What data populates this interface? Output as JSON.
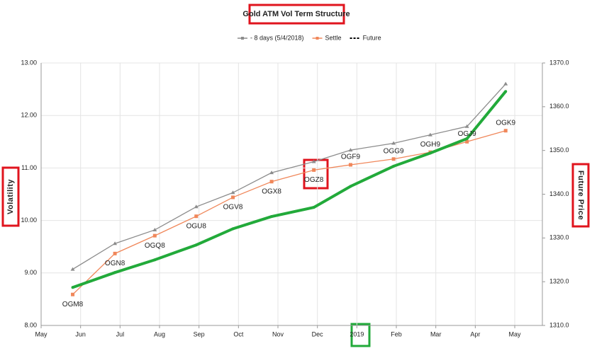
{
  "chart_data": {
    "type": "line",
    "title": "Gold ATM Vol Term Structure",
    "y_label": "Volatility",
    "y2_label": "Future Price",
    "xlim": [
      0,
      12.7
    ],
    "xticks": [
      {
        "value": 0,
        "label": "May"
      },
      {
        "value": 1,
        "label": "Jun"
      },
      {
        "value": 2,
        "label": "Jul"
      },
      {
        "value": 3,
        "label": "Aug"
      },
      {
        "value": 4,
        "label": "Sep"
      },
      {
        "value": 5,
        "label": "Oct"
      },
      {
        "value": 6,
        "label": "Nov"
      },
      {
        "value": 7,
        "label": "Dec"
      },
      {
        "value": 8,
        "label": "2019"
      },
      {
        "value": 9,
        "label": "Feb"
      },
      {
        "value": 10,
        "label": "Mar"
      },
      {
        "value": 11,
        "label": "Apr"
      },
      {
        "value": 12,
        "label": "May"
      }
    ],
    "ylim": [
      8,
      13
    ],
    "yticks": [
      {
        "value": 8,
        "label": "8.00"
      },
      {
        "value": 9,
        "label": "9.00"
      },
      {
        "value": 10,
        "label": "10.00"
      },
      {
        "value": 11,
        "label": "11.00"
      },
      {
        "value": 12,
        "label": "12.00"
      },
      {
        "value": 13,
        "label": "13.00"
      }
    ],
    "y2lim": [
      1310,
      1370
    ],
    "y2ticks": [
      {
        "value": 1310,
        "label": "1310.0"
      },
      {
        "value": 1320,
        "label": "1320.0"
      },
      {
        "value": 1330,
        "label": "1330.0"
      },
      {
        "value": 1340,
        "label": "1340.0"
      },
      {
        "value": 1350,
        "label": "1350.0"
      },
      {
        "value": 1360,
        "label": "1360.0"
      },
      {
        "value": 1370,
        "label": "1370.0"
      }
    ],
    "grid": true,
    "x": [
      0.8,
      1.87,
      2.88,
      3.93,
      4.86,
      5.84,
      6.91,
      7.84,
      8.93,
      9.86,
      10.79,
      11.77
    ],
    "point_labels": [
      "OGM8",
      "OGN8",
      "OGQ8",
      "OGU8",
      "OGV8",
      "OGX8",
      "OGZ8",
      "OGF9",
      "OGG9",
      "OGH9",
      "OGJ9",
      "OGK9"
    ],
    "series": [
      {
        "name": "- 8 days (5/4/2018)",
        "color": "#8c8c8c",
        "marker": "triangle",
        "values": [
          9.07,
          9.56,
          9.82,
          10.26,
          10.53,
          10.91,
          11.12,
          11.34,
          11.47,
          11.63,
          11.79,
          12.6
        ]
      },
      {
        "name": "Settle",
        "color": "#f0875a",
        "marker": "square",
        "values": [
          8.59,
          9.37,
          9.71,
          10.08,
          10.44,
          10.74,
          10.96,
          11.06,
          11.17,
          11.3,
          11.5,
          11.71
        ]
      },
      {
        "name": "Future",
        "color": "#22aa3a",
        "axis": "y2",
        "values": [
          1318.7,
          1322.1,
          1325.0,
          1328.4,
          1332.1,
          1334.9,
          1337.0,
          1341.8,
          1346.4,
          1349.4,
          1352.7,
          1363.5
        ]
      }
    ]
  }
}
